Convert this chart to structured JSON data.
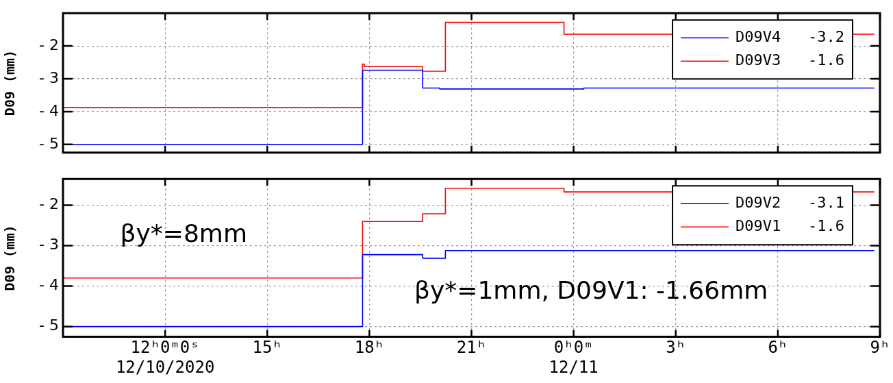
{
  "chart_data": [
    {
      "type": "step",
      "ylabel": "D09 (mm)",
      "xlim": [
        "2020-12-10T09:00",
        "2020-12-11T09:00"
      ],
      "xticks": [
        {
          "value": "2020-12-10T12:00",
          "label": null
        },
        {
          "value": "2020-12-10T15:00",
          "label": null
        },
        {
          "value": "2020-12-10T18:00",
          "label": null
        },
        {
          "value": "2020-12-10T21:00",
          "label": null
        },
        {
          "value": "2020-12-11T00:00",
          "label": null
        },
        {
          "value": "2020-12-11T03:00",
          "label": null
        },
        {
          "value": "2020-12-11T06:00",
          "label": null
        },
        {
          "value": "2020-12-11T09:00",
          "label": null
        }
      ],
      "ylim": [
        -5.25,
        -1
      ],
      "yticks": [
        -5,
        -4,
        -3,
        -2
      ],
      "grid": true,
      "legend": "top right",
      "tick_labels": "y",
      "marker": "none",
      "series": [
        {
          "name": "D09V4   -3.2",
          "color": "#0000ff",
          "x": [
            "2020-12-10T09:00",
            "2020-12-10T17:48",
            "2020-12-10T19:34",
            "2020-12-10T20:04",
            "2020-12-11T00:18",
            "2020-12-11T08:50"
          ],
          "values": [
            -5,
            -2.74,
            -3.28,
            -3.31,
            -3.28,
            -3.28
          ]
        },
        {
          "name": "D09V3   -1.6",
          "color": "#ff0000",
          "x": [
            "2020-12-10T09:00",
            "2020-12-10T17:48",
            "2020-12-10T17:51",
            "2020-12-10T19:34",
            "2020-12-10T20:14",
            "2020-12-10T23:43",
            "2020-12-11T08:50"
          ],
          "values": [
            -3.88,
            -2.55,
            -2.63,
            -2.77,
            -1.28,
            -1.64,
            -1.64
          ]
        }
      ]
    },
    {
      "type": "step",
      "ylabel": "D09 (mm)",
      "xlim": [
        "2020-12-10T09:00",
        "2020-12-11T09:00"
      ],
      "xticks": [
        {
          "value": "2020-12-10T12:00",
          "label": "12ʰ0ᵐ0ˢ\n12/10/2020"
        },
        {
          "value": "2020-12-10T15:00",
          "label": "15ʰ"
        },
        {
          "value": "2020-12-10T18:00",
          "label": "18ʰ"
        },
        {
          "value": "2020-12-10T21:00",
          "label": "21ʰ"
        },
        {
          "value": "2020-12-11T00:00",
          "label": "0ʰ0ᵐ\n12/11"
        },
        {
          "value": "2020-12-11T03:00",
          "label": "3ʰ"
        },
        {
          "value": "2020-12-11T06:00",
          "label": "6ʰ"
        },
        {
          "value": "2020-12-11T09:00",
          "label": "9ʰ"
        }
      ],
      "ylim": [
        -5.25,
        -1.35
      ],
      "yticks": [
        -5,
        -4,
        -3,
        -2
      ],
      "grid": true,
      "legend": "top right",
      "marker": "none",
      "annotations": [
        "βy*=8mm",
        "βy*=1mm, D09V1: -1.66mm"
      ],
      "series": [
        {
          "name": "D09V2   -3.1",
          "color": "#0000ff",
          "x": [
            "2020-12-10T09:00",
            "2020-12-10T17:48",
            "2020-12-10T19:34",
            "2020-12-10T20:14",
            "2020-12-11T08:50"
          ],
          "values": [
            -5,
            -3.22,
            -3.31,
            -3.12,
            -3.12
          ]
        },
        {
          "name": "D09V1   -1.6",
          "color": "#ff0000",
          "x": [
            "2020-12-10T09:00",
            "2020-12-10T17:48",
            "2020-12-10T19:34",
            "2020-12-10T20:14",
            "2020-12-10T23:43",
            "2020-12-11T08:50"
          ],
          "values": [
            -3.8,
            -2.4,
            -2.21,
            -1.58,
            -1.67,
            -1.67
          ]
        }
      ]
    }
  ]
}
